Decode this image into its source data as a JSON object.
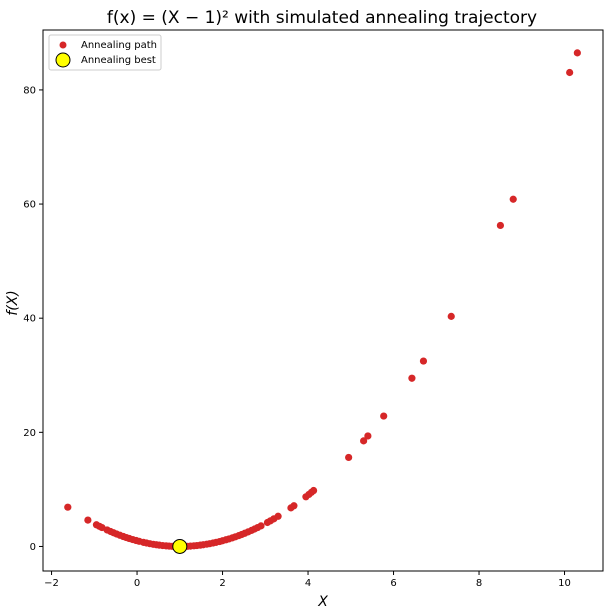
{
  "chart_data": {
    "type": "scatter",
    "title": "f(x) = (X − 1)² with simulated annealing trajectory",
    "xlabel": "X",
    "ylabel": "f(X)",
    "xlim": [
      -2.2,
      10.9
    ],
    "ylim": [
      -4.3,
      90.5
    ],
    "xticks": [
      -2,
      0,
      2,
      4,
      6,
      8,
      10
    ],
    "yticks": [
      0,
      20,
      40,
      60,
      80
    ],
    "grid": false,
    "legend_position": "top-left",
    "colors": {
      "path": "#d62728",
      "best": "#ffff00",
      "best_edge": "#000000"
    },
    "series": [
      {
        "name": "Annealing path",
        "marker": "circle",
        "x": [
          -1.62,
          -1.15,
          -0.95,
          -0.88,
          -0.82,
          -0.7,
          -0.62,
          -0.55,
          -0.48,
          -0.4,
          -0.32,
          -0.25,
          -0.18,
          -0.1,
          -0.02,
          0.05,
          0.15,
          0.22,
          0.3,
          0.38,
          0.45,
          0.52,
          0.6,
          0.68,
          0.75,
          0.82,
          0.88,
          0.95,
          1.02,
          1.1,
          1.18,
          1.25,
          1.33,
          1.4,
          1.48,
          1.55,
          1.63,
          1.7,
          1.78,
          1.85,
          1.93,
          2.0,
          2.08,
          2.15,
          2.23,
          2.3,
          2.38,
          2.45,
          2.52,
          2.6,
          2.68,
          2.75,
          2.82,
          2.9,
          3.05,
          3.12,
          3.2,
          3.3,
          3.6,
          3.67,
          3.95,
          4.02,
          4.08,
          4.13,
          4.95,
          5.3,
          5.4,
          5.77,
          6.43,
          6.7,
          7.35,
          8.5,
          8.8,
          10.12,
          10.3
        ],
        "y": [
          6.88,
          4.62,
          3.8,
          3.53,
          3.31,
          2.89,
          2.62,
          2.4,
          2.19,
          1.96,
          1.74,
          1.56,
          1.39,
          1.21,
          1.04,
          0.9,
          0.72,
          0.61,
          0.49,
          0.38,
          0.3,
          0.23,
          0.16,
          0.1,
          0.06,
          0.03,
          0.01,
          0.0,
          0.0,
          0.01,
          0.03,
          0.06,
          0.11,
          0.16,
          0.23,
          0.3,
          0.4,
          0.49,
          0.61,
          0.72,
          0.86,
          1.0,
          1.17,
          1.32,
          1.51,
          1.69,
          1.9,
          2.1,
          2.31,
          2.56,
          2.82,
          3.06,
          3.31,
          3.61,
          4.2,
          4.49,
          4.84,
          5.29,
          6.76,
          7.13,
          8.7,
          9.12,
          9.49,
          9.8,
          15.6,
          18.5,
          19.36,
          22.85,
          29.48,
          32.49,
          40.32,
          56.25,
          60.84,
          83.05,
          86.49
        ]
      },
      {
        "name": "Annealing best",
        "marker": "circle-large",
        "x": [
          1.0
        ],
        "y": [
          0.0
        ]
      }
    ]
  }
}
